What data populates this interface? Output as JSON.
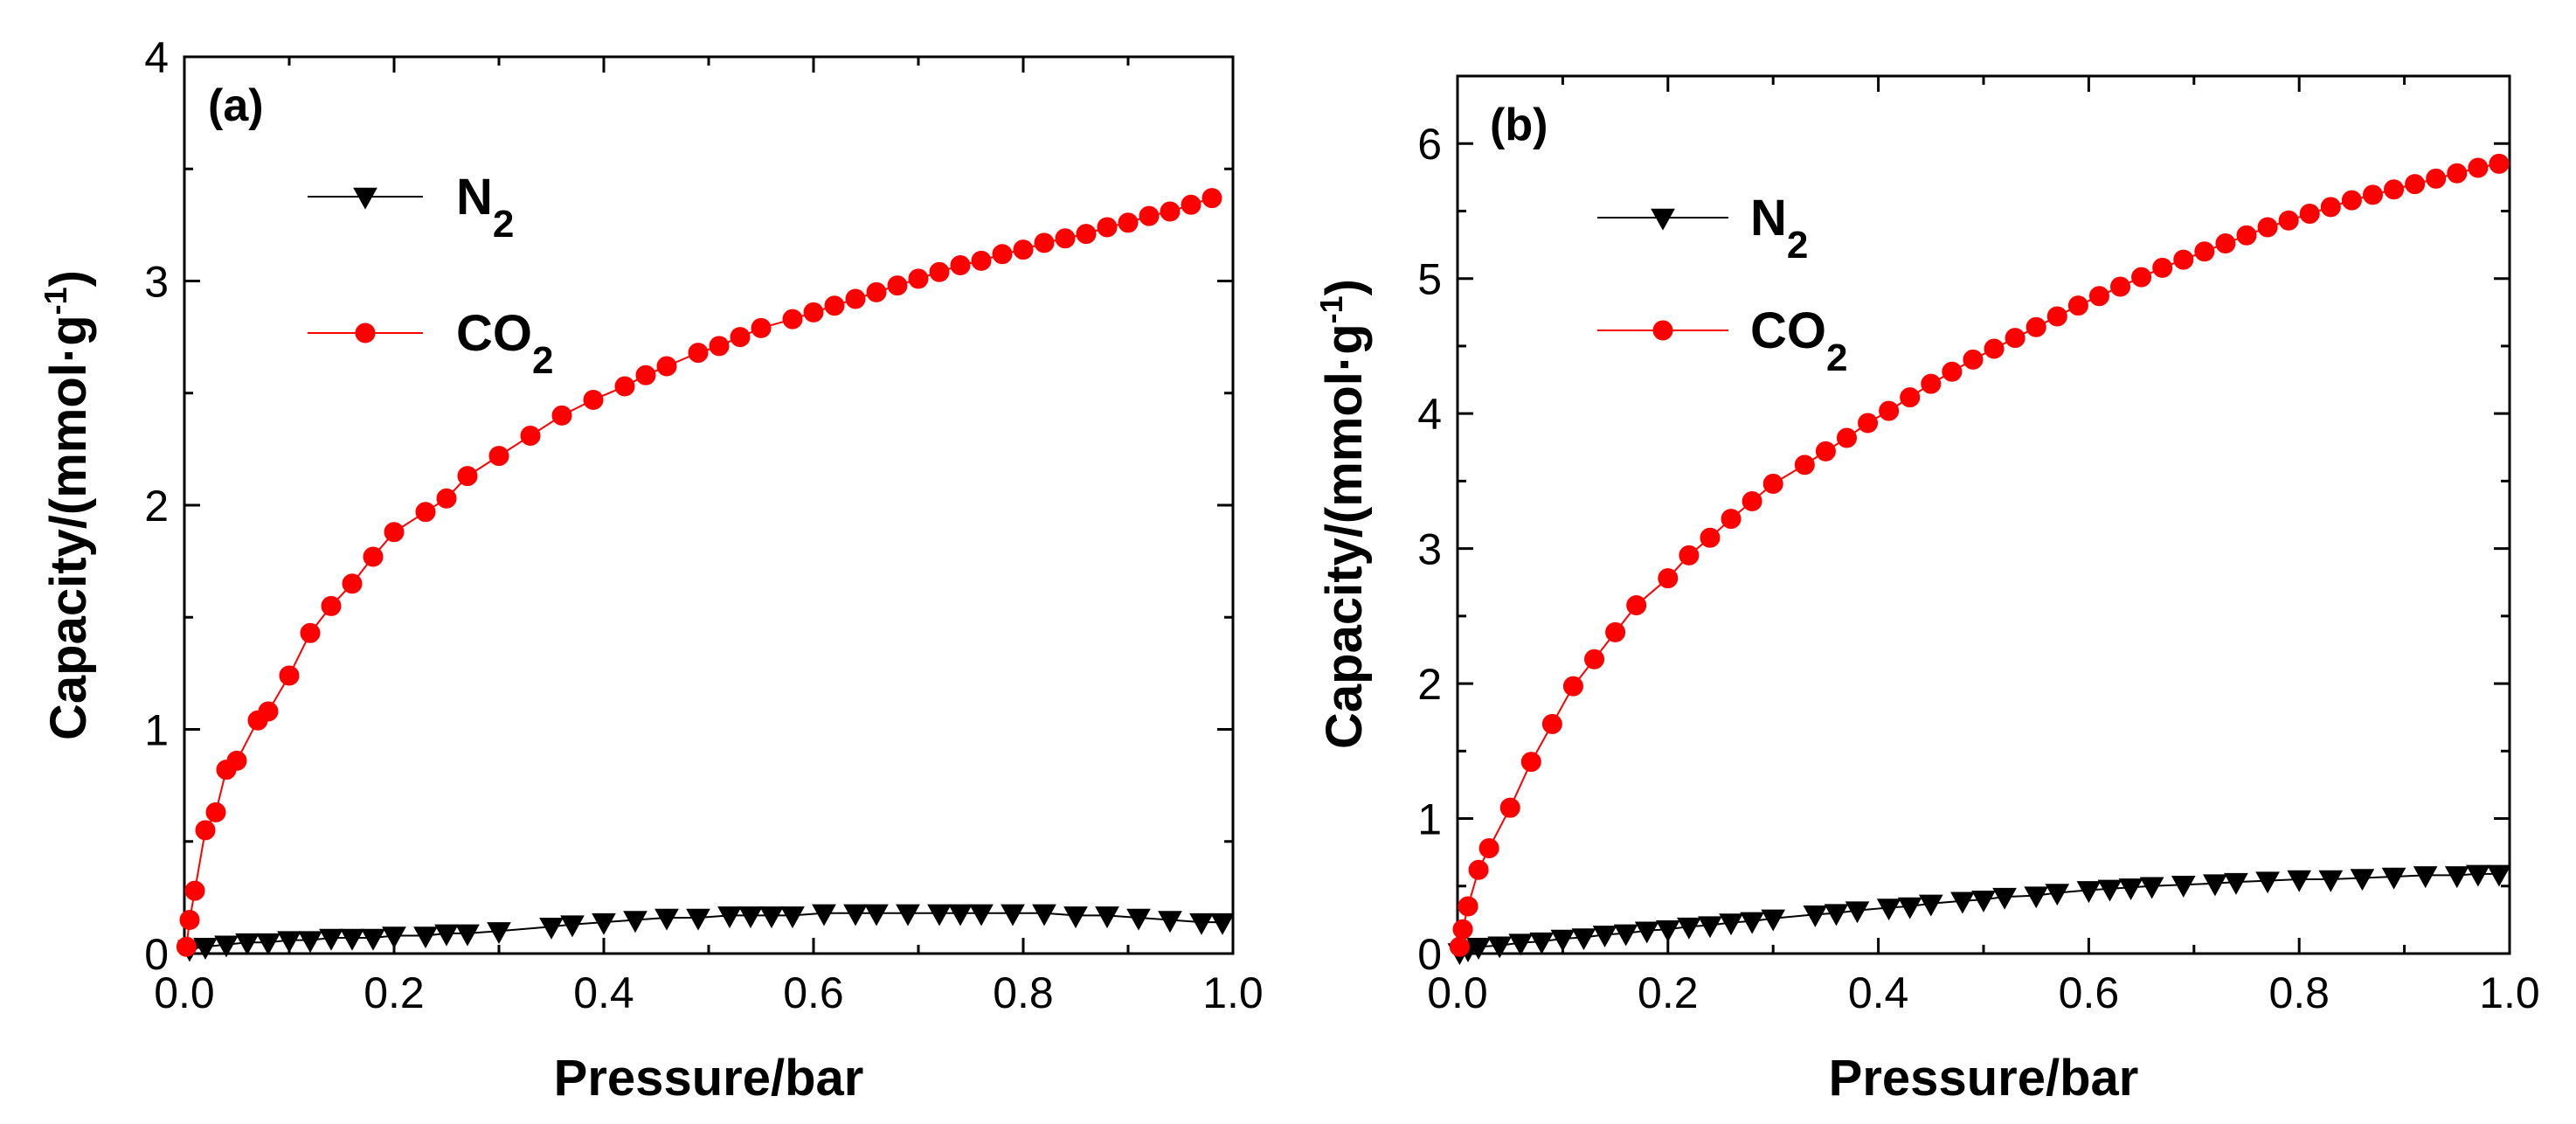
{
  "chart_data": [
    {
      "panel_label": "(a)",
      "type": "line",
      "xlabel": "Pressure/bar",
      "ylabel": "Capacity/(mmol·g",
      "ylabel_sup": "-1",
      "ylabel_close": ")",
      "xlim": [
        0.0,
        1.0
      ],
      "ylim": [
        0,
        4
      ],
      "xticks": [
        "0.0",
        "0.2",
        "0.4",
        "0.6",
        "0.8",
        "1.0"
      ],
      "yticks": [
        "0",
        "1",
        "2",
        "3",
        "4"
      ],
      "legend": [
        {
          "series": "N2",
          "base": "N",
          "sub": "2"
        },
        {
          "series": "CO2",
          "base": "CO",
          "sub": "2"
        }
      ],
      "series": [
        {
          "name": "N2",
          "color": "#000000",
          "marker": "down-triangle",
          "x": [
            0.005,
            0.02,
            0.04,
            0.06,
            0.08,
            0.1,
            0.12,
            0.14,
            0.16,
            0.18,
            0.2,
            0.23,
            0.25,
            0.27,
            0.3,
            0.35,
            0.37,
            0.4,
            0.43,
            0.46,
            0.49,
            0.52,
            0.54,
            0.56,
            0.58,
            0.61,
            0.64,
            0.66,
            0.69,
            0.72,
            0.74,
            0.76,
            0.79,
            0.82,
            0.85,
            0.88,
            0.91,
            0.94,
            0.97,
            0.99
          ],
          "y": [
            0.02,
            0.03,
            0.04,
            0.05,
            0.05,
            0.06,
            0.06,
            0.07,
            0.07,
            0.07,
            0.08,
            0.08,
            0.09,
            0.09,
            0.1,
            0.12,
            0.13,
            0.14,
            0.15,
            0.16,
            0.16,
            0.17,
            0.17,
            0.17,
            0.17,
            0.18,
            0.18,
            0.18,
            0.18,
            0.18,
            0.18,
            0.18,
            0.18,
            0.18,
            0.17,
            0.17,
            0.16,
            0.15,
            0.14,
            0.14
          ]
        },
        {
          "name": "CO2",
          "color": "#ff0000",
          "marker": "circle",
          "x": [
            0.002,
            0.005,
            0.01,
            0.02,
            0.03,
            0.04,
            0.05,
            0.07,
            0.08,
            0.1,
            0.12,
            0.14,
            0.16,
            0.18,
            0.2,
            0.23,
            0.25,
            0.27,
            0.3,
            0.33,
            0.36,
            0.39,
            0.42,
            0.44,
            0.46,
            0.49,
            0.51,
            0.53,
            0.55,
            0.58,
            0.6,
            0.62,
            0.64,
            0.66,
            0.68,
            0.7,
            0.72,
            0.74,
            0.76,
            0.78,
            0.8,
            0.82,
            0.84,
            0.86,
            0.88,
            0.9,
            0.92,
            0.94,
            0.96,
            0.98
          ],
          "y": [
            0.03,
            0.15,
            0.28,
            0.55,
            0.63,
            0.82,
            0.86,
            1.04,
            1.08,
            1.24,
            1.43,
            1.55,
            1.65,
            1.77,
            1.88,
            1.97,
            2.03,
            2.13,
            2.22,
            2.31,
            2.4,
            2.47,
            2.53,
            2.58,
            2.62,
            2.68,
            2.71,
            2.75,
            2.79,
            2.83,
            2.86,
            2.89,
            2.92,
            2.95,
            2.98,
            3.01,
            3.04,
            3.07,
            3.09,
            3.12,
            3.14,
            3.17,
            3.19,
            3.21,
            3.24,
            3.26,
            3.29,
            3.31,
            3.34,
            3.37
          ]
        }
      ]
    },
    {
      "panel_label": "(b)",
      "type": "line",
      "xlabel": "Pressure/bar",
      "ylabel": "Capacity/(mmol·g",
      "ylabel_sup": "-1",
      "ylabel_close": ")",
      "xlim": [
        0.0,
        1.0
      ],
      "ylim": [
        0,
        6.5
      ],
      "xticks": [
        "0.0",
        "0.2",
        "0.4",
        "0.6",
        "0.8",
        "1.0"
      ],
      "yticks": [
        "0",
        "1",
        "2",
        "3",
        "4",
        "5",
        "6"
      ],
      "legend": [
        {
          "series": "N2",
          "base": "N",
          "sub": "2"
        },
        {
          "series": "CO2",
          "base": "CO",
          "sub": "2"
        }
      ],
      "series": [
        {
          "name": "N2",
          "color": "#000000",
          "marker": "down-triangle",
          "x": [
            0.002,
            0.01,
            0.02,
            0.04,
            0.06,
            0.08,
            0.1,
            0.12,
            0.14,
            0.16,
            0.18,
            0.2,
            0.22,
            0.24,
            0.26,
            0.28,
            0.3,
            0.34,
            0.36,
            0.38,
            0.41,
            0.43,
            0.45,
            0.48,
            0.5,
            0.52,
            0.55,
            0.57,
            0.6,
            0.62,
            0.64,
            0.66,
            0.69,
            0.72,
            0.74,
            0.77,
            0.8,
            0.83,
            0.86,
            0.89,
            0.92,
            0.95,
            0.97,
            0.99
          ],
          "y": [
            0.01,
            0.03,
            0.05,
            0.06,
            0.08,
            0.09,
            0.11,
            0.12,
            0.14,
            0.15,
            0.17,
            0.18,
            0.2,
            0.21,
            0.23,
            0.24,
            0.26,
            0.29,
            0.3,
            0.32,
            0.34,
            0.35,
            0.37,
            0.39,
            0.4,
            0.42,
            0.43,
            0.45,
            0.47,
            0.48,
            0.49,
            0.5,
            0.51,
            0.52,
            0.53,
            0.54,
            0.55,
            0.55,
            0.56,
            0.57,
            0.58,
            0.58,
            0.59,
            0.59
          ]
        },
        {
          "name": "CO2",
          "color": "#ff0000",
          "marker": "circle",
          "x": [
            0.002,
            0.005,
            0.01,
            0.02,
            0.03,
            0.05,
            0.07,
            0.09,
            0.11,
            0.13,
            0.15,
            0.17,
            0.2,
            0.22,
            0.24,
            0.26,
            0.28,
            0.3,
            0.33,
            0.35,
            0.37,
            0.39,
            0.41,
            0.43,
            0.45,
            0.47,
            0.49,
            0.51,
            0.53,
            0.55,
            0.57,
            0.59,
            0.61,
            0.63,
            0.65,
            0.67,
            0.69,
            0.71,
            0.73,
            0.75,
            0.77,
            0.79,
            0.81,
            0.83,
            0.85,
            0.87,
            0.89,
            0.91,
            0.93,
            0.95,
            0.97,
            0.99
          ],
          "y": [
            0.05,
            0.18,
            0.35,
            0.62,
            0.78,
            1.08,
            1.42,
            1.7,
            1.98,
            2.18,
            2.38,
            2.58,
            2.78,
            2.95,
            3.08,
            3.22,
            3.35,
            3.48,
            3.62,
            3.72,
            3.82,
            3.93,
            4.02,
            4.12,
            4.22,
            4.31,
            4.4,
            4.48,
            4.56,
            4.64,
            4.72,
            4.8,
            4.87,
            4.94,
            5.01,
            5.08,
            5.14,
            5.2,
            5.26,
            5.32,
            5.38,
            5.43,
            5.48,
            5.53,
            5.58,
            5.62,
            5.66,
            5.7,
            5.74,
            5.78,
            5.82,
            5.85
          ]
        }
      ]
    }
  ]
}
